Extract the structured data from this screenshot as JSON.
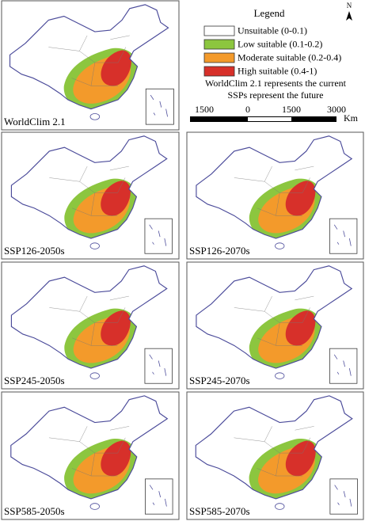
{
  "legend": {
    "title": "Legend",
    "items": [
      {
        "label": "Unsuitable (0-0.1)",
        "color": "#ffffff"
      },
      {
        "label": "Low suitable (0.1-0.2)",
        "color": "#8cc63f"
      },
      {
        "label": "Moderate suitable (0.2-0.4)",
        "color": "#f39a2b"
      },
      {
        "label": "High suitable (0.4-1)",
        "color": "#d7302a"
      }
    ]
  },
  "notes": [
    "WorldClim 2.1 represents the current",
    "SSPs represent the future"
  ],
  "scale_bar": {
    "labels": [
      "1500",
      "0",
      "1500",
      "3000"
    ],
    "unit": "Km"
  },
  "north": "N",
  "panels": [
    {
      "label": "WorldClim 2.1"
    },
    {
      "label": "SSP126-2050s"
    },
    {
      "label": "SSP126-2070s"
    },
    {
      "label": "SSP245-2050s"
    },
    {
      "label": "SSP245-2070s"
    },
    {
      "label": "SSP585-2050s"
    },
    {
      "label": "SSP585-2070s"
    }
  ]
}
